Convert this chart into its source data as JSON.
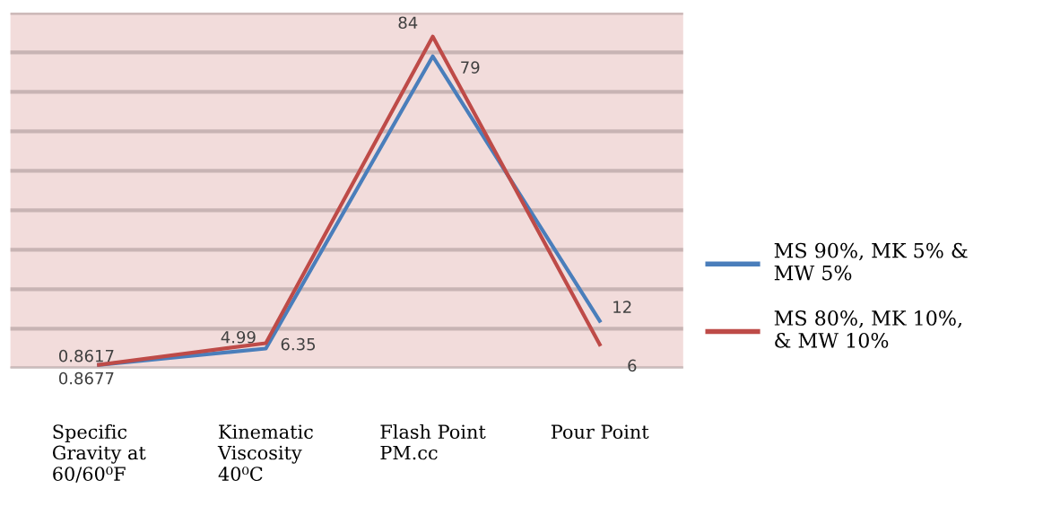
{
  "chart_data": {
    "type": "line",
    "categories": [
      "Specific\nGravity at\n60/60⁰F",
      "Kinematic\nViscosity\n40⁰C",
      "Flash Point\nPM.cc",
      "Pour Point"
    ],
    "series": [
      {
        "name": "MS 90%, MK 5% &\nMW 5%",
        "color": "#4a7ebb",
        "values": [
          0.8617,
          4.99,
          79,
          12
        ]
      },
      {
        "name": "MS 80%, MK 10%,\n& MW 10%",
        "color": "#be4b48",
        "values": [
          0.8677,
          6.35,
          84,
          6
        ]
      }
    ],
    "ylim": [
      0,
      90
    ],
    "yticks": [
      {
        "value": 0,
        "label": null
      },
      {
        "value": 10,
        "label": null
      },
      {
        "value": 20,
        "label": null
      },
      {
        "value": 30,
        "label": null
      },
      {
        "value": 40,
        "label": null
      },
      {
        "value": 50,
        "label": null
      },
      {
        "value": 60,
        "label": null
      },
      {
        "value": 70,
        "label": null
      },
      {
        "value": 80,
        "label": null
      },
      {
        "value": 90,
        "label": null
      }
    ],
    "tick_labels": "x",
    "grid": "y",
    "legend": "right",
    "data_labels": true,
    "marker": "none",
    "line_style": "solid"
  }
}
